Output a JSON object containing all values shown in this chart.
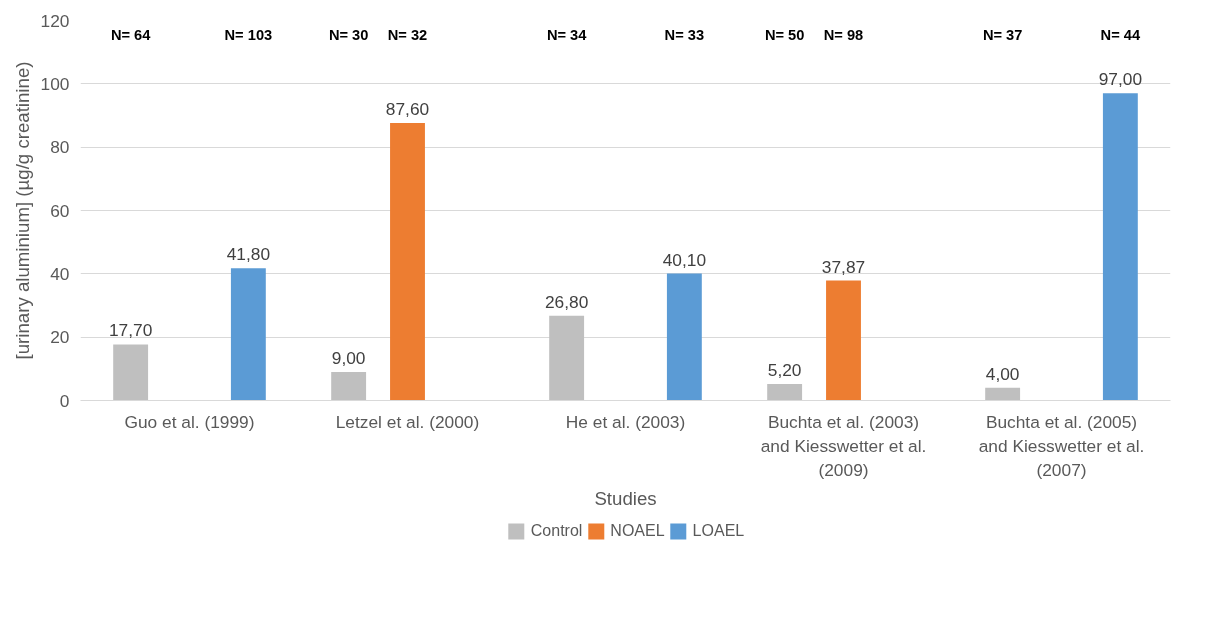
{
  "chart_data": {
    "type": "bar",
    "xlabel": "Studies",
    "ylabel": "[urinary aluminium] (µg/g creatinine)",
    "categories": [
      "Guo et al. (1999)",
      "Letzel et al. (2000)",
      "He et al. (2003)",
      "Buchta et al. (2003) and Kiesswetter et al. (2009)",
      "Buchta et al. (2005) and Kiesswetter et al. (2007)"
    ],
    "series": [
      {
        "name": "Control",
        "color": "#bfbfbf",
        "values": [
          17.7,
          9.0,
          26.8,
          5.2,
          4.0
        ],
        "value_labels": [
          "17,70",
          "9,00",
          "26,80",
          "5,20",
          "4,00"
        ]
      },
      {
        "name": "NOAEL",
        "color": "#ed7d31",
        "values": [
          null,
          87.6,
          null,
          37.87,
          null
        ],
        "value_labels": [
          null,
          "87,60",
          null,
          "37,87",
          null
        ]
      },
      {
        "name": "LOAEL",
        "color": "#5b9bd5",
        "values": [
          41.8,
          null,
          40.1,
          null,
          97.0
        ],
        "value_labels": [
          "41,80",
          null,
          "40,10",
          null,
          "97,00"
        ]
      }
    ],
    "annotations": [
      "N= 64",
      "N= 103",
      "N= 30",
      "N= 32",
      "N= 34",
      "N= 33",
      "N= 50",
      "N= 98",
      "N= 37",
      "N= 44"
    ],
    "ylim": [
      0,
      120
    ],
    "yticks": [
      0,
      20,
      40,
      60,
      80,
      100,
      120
    ],
    "grid": "y",
    "legend": "bottom"
  }
}
